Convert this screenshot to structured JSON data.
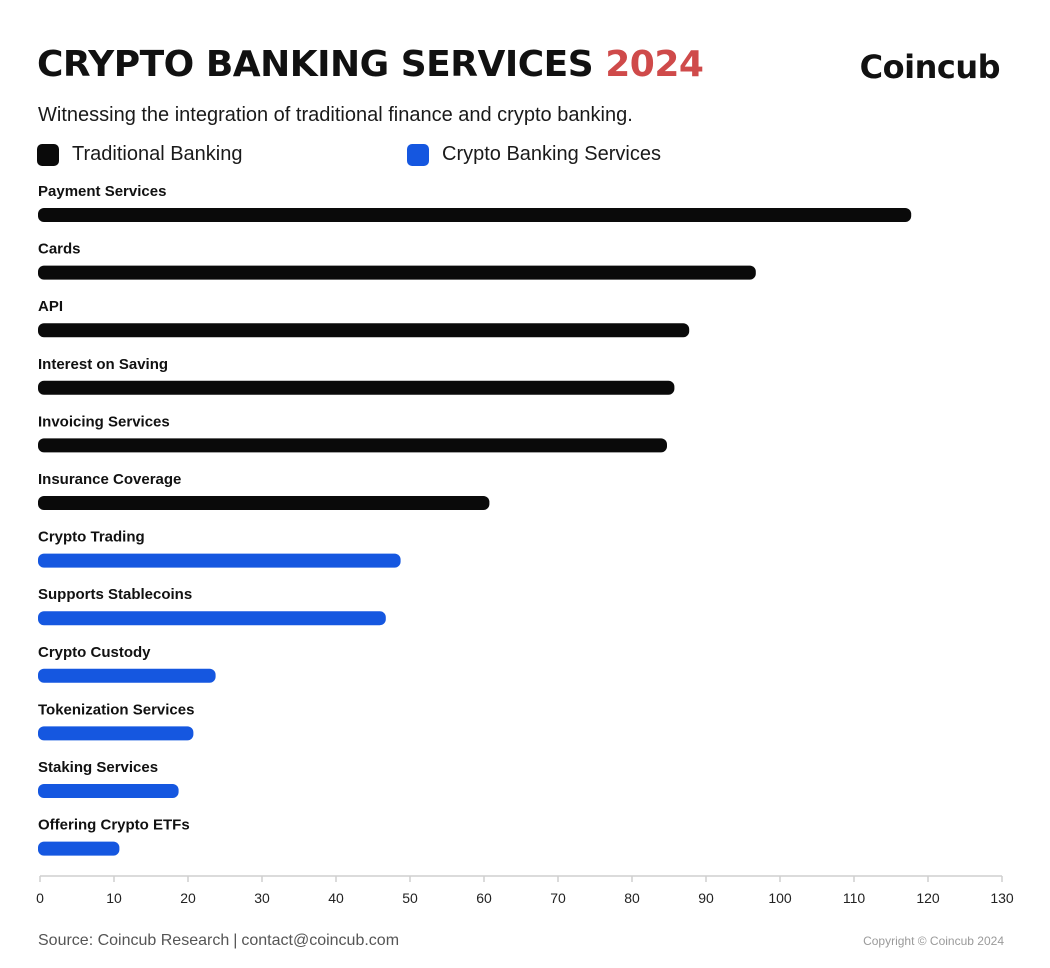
{
  "header": {
    "title": "CRYPTO BANKING SERVICES",
    "title_year": "2024",
    "brand": "Coincub",
    "subtitle": "Witnessing the integration of traditional finance and crypto banking."
  },
  "legend": [
    {
      "label": "Traditional Banking",
      "color": "#0a0a0a"
    },
    {
      "label": "Crypto Banking Services",
      "color": "#1557e0"
    }
  ],
  "chart_data": {
    "type": "bar",
    "orientation": "horizontal",
    "title": "CRYPTO BANKING SERVICES 2024",
    "categories": [
      "Payment Services",
      "Cards",
      "API",
      "Interest on Saving",
      "Invoicing Services",
      "Insurance Coverage",
      "Crypto Trading",
      "Supports Stablecoins",
      "Crypto Custody",
      "Tokenization Services",
      "Staking Services",
      "Offering Crypto ETFs"
    ],
    "values": [
      118,
      97,
      88,
      86,
      85,
      61,
      49,
      47,
      24,
      21,
      19,
      11
    ],
    "groups": [
      "Traditional Banking",
      "Traditional Banking",
      "Traditional Banking",
      "Traditional Banking",
      "Traditional Banking",
      "Traditional Banking",
      "Crypto Banking Services",
      "Crypto Banking Services",
      "Crypto Banking Services",
      "Crypto Banking Services",
      "Crypto Banking Services",
      "Crypto Banking Services"
    ],
    "xlim": [
      0,
      130
    ],
    "xticks": [
      0,
      10,
      20,
      30,
      40,
      50,
      60,
      70,
      80,
      90,
      100,
      110,
      120,
      130
    ],
    "grid": false,
    "legend_position": "top-left"
  },
  "footer": {
    "source": "Source: Coincub Research",
    "separator": "|",
    "contact": "contact@coincub.com",
    "copyright": "Copyright © Coincub 2024"
  }
}
